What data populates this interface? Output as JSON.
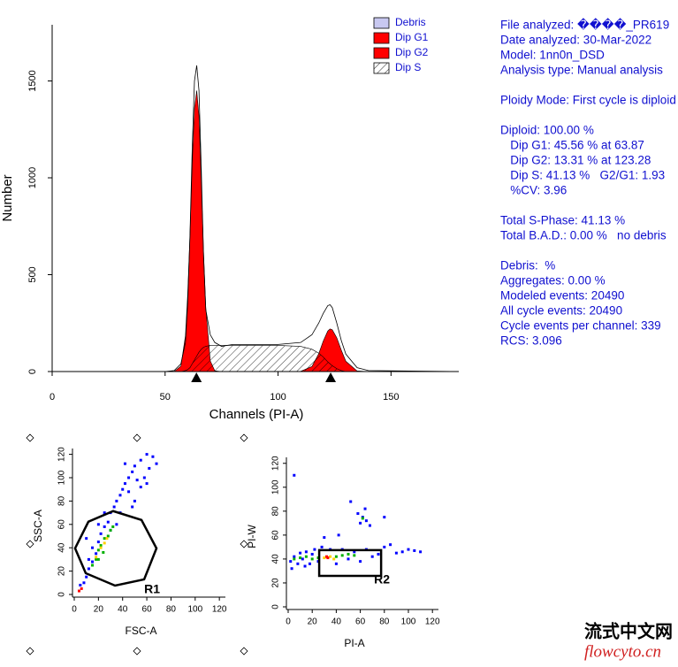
{
  "chart_data": [
    {
      "type": "area",
      "xlabel": "Channels (PI-A)",
      "ylabel": "Number",
      "x": [
        50,
        54,
        57,
        59,
        60,
        61,
        62,
        63,
        64,
        65,
        66,
        67,
        68,
        70,
        72,
        75,
        80,
        90,
        100,
        110,
        115,
        118,
        120,
        122,
        123,
        124,
        126,
        128,
        130,
        135,
        140,
        180
      ],
      "series": [
        {
          "name": "Debris",
          "color": "#c8c8f0"
        },
        {
          "name": "Dip G1",
          "color": "#ff0000",
          "values": [
            0,
            0,
            28,
            185,
            400,
            700,
            1070,
            1360,
            1450,
            1320,
            980,
            620,
            330,
            55,
            4,
            0,
            0,
            0,
            0,
            0,
            0,
            0,
            0,
            0,
            0,
            0,
            0,
            0,
            0,
            0,
            0,
            0
          ]
        },
        {
          "name": "Dip G2",
          "color": "#ff0000",
          "values": [
            0,
            0,
            0,
            0,
            0,
            0,
            0,
            0,
            0,
            0,
            0,
            0,
            0,
            0,
            0,
            0,
            0,
            0,
            0,
            1,
            26,
            92,
            157,
            209,
            220,
            216,
            174,
            110,
            53,
            3,
            0,
            0
          ]
        },
        {
          "name": "Dip S",
          "color": "#000000",
          "pattern": "hatch",
          "values": [
            0,
            0,
            0,
            5,
            10,
            20,
            40,
            60,
            80,
            100,
            115,
            125,
            130,
            135,
            135,
            135,
            135,
            135,
            135,
            130,
            115,
            95,
            75,
            50,
            40,
            30,
            15,
            5,
            0,
            0,
            0,
            0
          ]
        },
        {
          "color": "#000000",
          "values": [
            0,
            5,
            40,
            150,
            350,
            700,
            1150,
            1500,
            1580,
            1450,
            1050,
            600,
            320,
            190,
            150,
            130,
            140,
            140,
            140,
            150,
            190,
            250,
            300,
            340,
            345,
            330,
            250,
            160,
            90,
            20,
            5,
            0
          ]
        }
      ],
      "peaks": [
        63.87,
        123.28
      ],
      "xlim": [
        0,
        180
      ],
      "ylim": [
        0,
        1790
      ],
      "xticks": [
        0,
        50,
        100,
        150
      ],
      "yticks": [
        0,
        500,
        1000,
        1500
      ]
    },
    {
      "type": "scatter",
      "xlabel": "FSC-A",
      "ylabel": "SSC-A",
      "xlim": [
        0,
        125
      ],
      "ylim": [
        0,
        125
      ],
      "xticks": [
        0,
        20,
        40,
        60,
        80,
        100,
        120
      ],
      "yticks": [
        0,
        20,
        40,
        60,
        80,
        100,
        120
      ],
      "gate": {
        "name": "R1",
        "x": [
          0.7,
          11.7,
          32.2,
          55.6,
          68,
          57.8,
          33.7,
          9.5
        ],
        "y": [
          39.5,
          62.3,
          71.4,
          63.8,
          39.5,
          12.9,
          7.6,
          18.2
        ]
      },
      "series": [
        {
          "color": "#0000ff",
          "x": [
            8,
            10,
            12,
            15,
            18,
            20,
            22,
            25,
            28,
            30,
            33,
            35,
            38,
            40,
            42,
            45,
            48,
            50,
            55,
            60,
            52,
            45,
            38,
            50,
            58,
            62,
            30,
            15,
            12,
            20,
            65,
            42,
            68,
            55,
            25,
            10,
            35,
            48,
            5,
            60
          ],
          "values": [
            10,
            15,
            22,
            28,
            35,
            45,
            52,
            58,
            62,
            70,
            75,
            80,
            85,
            90,
            95,
            100,
            105,
            110,
            115,
            120,
            98,
            88,
            70,
            80,
            100,
            108,
            55,
            40,
            30,
            60,
            118,
            112,
            112,
            92,
            70,
            48,
            60,
            75,
            8,
            95
          ]
        },
        {
          "color": "#00b000",
          "x": [
            15,
            18,
            20,
            22,
            25,
            28,
            30,
            20,
            24,
            32
          ],
          "values": [
            25,
            30,
            38,
            42,
            48,
            50,
            55,
            30,
            36,
            58
          ]
        },
        {
          "color": "#ffd000",
          "x": [
            18,
            22,
            25,
            27
          ],
          "values": [
            32,
            40,
            44,
            48
          ]
        },
        {
          "color": "#ff0000",
          "x": [
            4,
            6
          ],
          "values": [
            3,
            5
          ]
        }
      ]
    },
    {
      "type": "scatter",
      "xlabel": "PI-A",
      "ylabel": "PI-W",
      "xlim": [
        0,
        125
      ],
      "ylim": [
        0,
        125
      ],
      "xticks": [
        0,
        20,
        40,
        60,
        80,
        100,
        120
      ],
      "yticks": [
        0,
        20,
        40,
        60,
        80,
        100,
        120
      ],
      "gate": {
        "name": "R2",
        "x": [
          25.8,
          77.3,
          77.3,
          25.8
        ],
        "y": [
          47.4,
          47.4,
          25.9,
          25.9
        ]
      },
      "series": [
        {
          "color": "#0000ff",
          "x": [
            2,
            5,
            8,
            10,
            12,
            15,
            18,
            20,
            22,
            25,
            28,
            35,
            40,
            45,
            50,
            55,
            60,
            65,
            70,
            75,
            80,
            85,
            90,
            95,
            100,
            105,
            110,
            60,
            62,
            65,
            58,
            64,
            68,
            5,
            52,
            80,
            42,
            30,
            3,
            14
          ],
          "values": [
            38,
            42,
            36,
            45,
            40,
            46,
            36,
            44,
            48,
            38,
            50,
            48,
            36,
            48,
            40,
            46,
            38,
            48,
            42,
            44,
            50,
            52,
            45,
            46,
            48,
            47,
            46,
            70,
            75,
            72,
            78,
            82,
            68,
            110,
            88,
            75,
            60,
            58,
            32,
            34
          ]
        },
        {
          "color": "#00b000",
          "x": [
            5,
            10,
            15,
            20,
            25,
            40,
            45,
            50,
            55,
            62
          ],
          "values": [
            40,
            41,
            42,
            40,
            41,
            42,
            43,
            44,
            43,
            74
          ]
        },
        {
          "color": "#ffd000",
          "x": [
            30,
            35,
            38
          ],
          "values": [
            41,
            42,
            40
          ]
        },
        {
          "color": "#ff0000",
          "x": [
            32,
            33
          ],
          "values": [
            42,
            41
          ]
        }
      ]
    }
  ],
  "info": [
    [
      "File analyzed: ����_PR619",
      "Date analyzed: 30-Mar-2022",
      "Model: 1nn0n_DSD",
      "Analysis type: Manual analysis"
    ],
    [
      "Ploidy Mode: First cycle is diploid"
    ],
    [
      "Diploid: 100.00 %",
      "   Dip G1: 45.56 % at 63.87",
      "   Dip G2: 13.31 % at 123.28",
      "   Dip S: 41.13 %   G2/G1: 1.93",
      "   %CV: 3.96"
    ],
    [
      "Total S-Phase: 41.13 %",
      "Total B.A.D.: 0.00 %   no debris"
    ],
    [
      "Debris:  %",
      "Aggregates: 0.00 %",
      "Modeled events: 20490",
      "All cycle events: 20490",
      "Cycle events per channel: 339",
      "RCS: 3.096"
    ]
  ],
  "watermark": {
    "title": "流式中文网",
    "site": "flowcyto.cn"
  }
}
